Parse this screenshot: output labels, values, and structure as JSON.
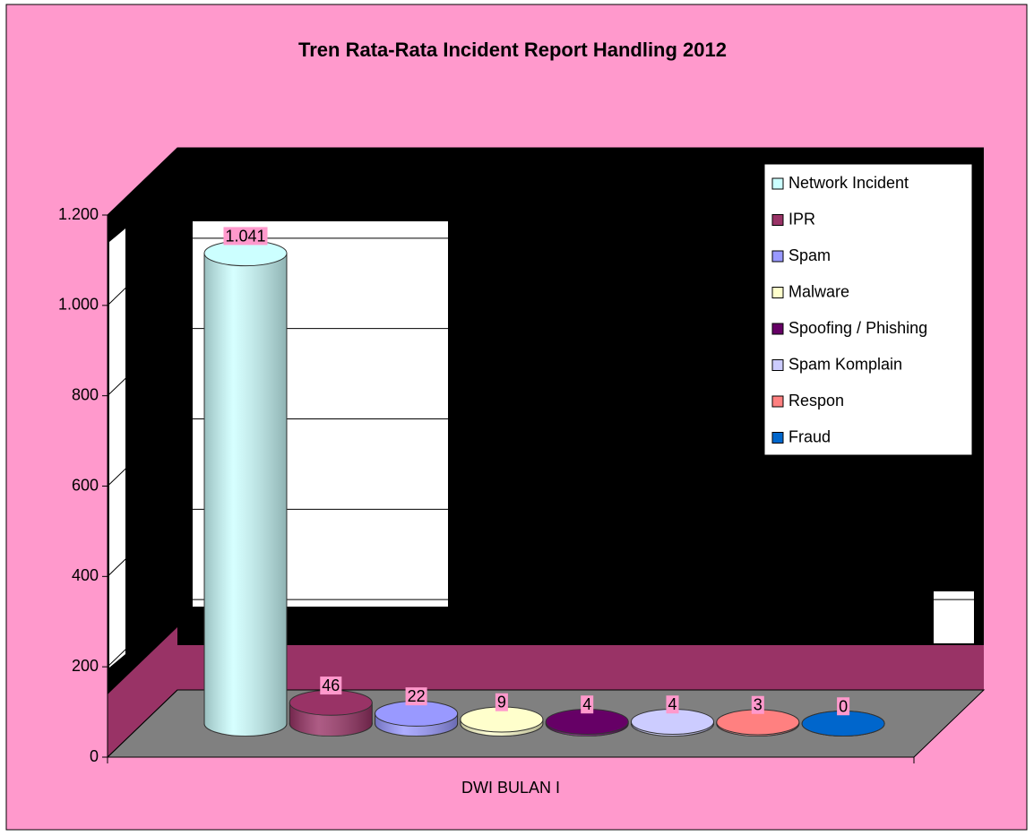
{
  "chart_data": {
    "type": "bar",
    "title": "Tren Rata-Rata Incident Report Handling 2012",
    "categories": [
      "DWI BULAN I"
    ],
    "series": [
      {
        "name": "Network Incident",
        "color": "#CCFFFF",
        "values": [
          1041
        ],
        "value_labels": [
          "1.041"
        ]
      },
      {
        "name": "IPR",
        "color": "#993366",
        "values": [
          46
        ]
      },
      {
        "name": "Spam",
        "color": "#9999FF",
        "values": [
          22
        ]
      },
      {
        "name": "Malware",
        "color": "#FFFFCC",
        "values": [
          9
        ]
      },
      {
        "name": "Spoofing / Phishing",
        "color": "#660066",
        "values": [
          4
        ]
      },
      {
        "name": "Spam Komplain",
        "color": "#CCCCFF",
        "values": [
          4
        ]
      },
      {
        "name": "Respon",
        "color": "#FF8080",
        "values": [
          3
        ]
      },
      {
        "name": "Fraud",
        "color": "#0066CC",
        "values": [
          0
        ]
      }
    ],
    "ylim": [
      0,
      1200
    ],
    "yticks": [
      0,
      200,
      400,
      600,
      800,
      {
        "value": 1000,
        "label": "1.000"
      },
      {
        "value": 1200,
        "label": "1.200"
      }
    ],
    "grid": true,
    "legend": "right"
  }
}
